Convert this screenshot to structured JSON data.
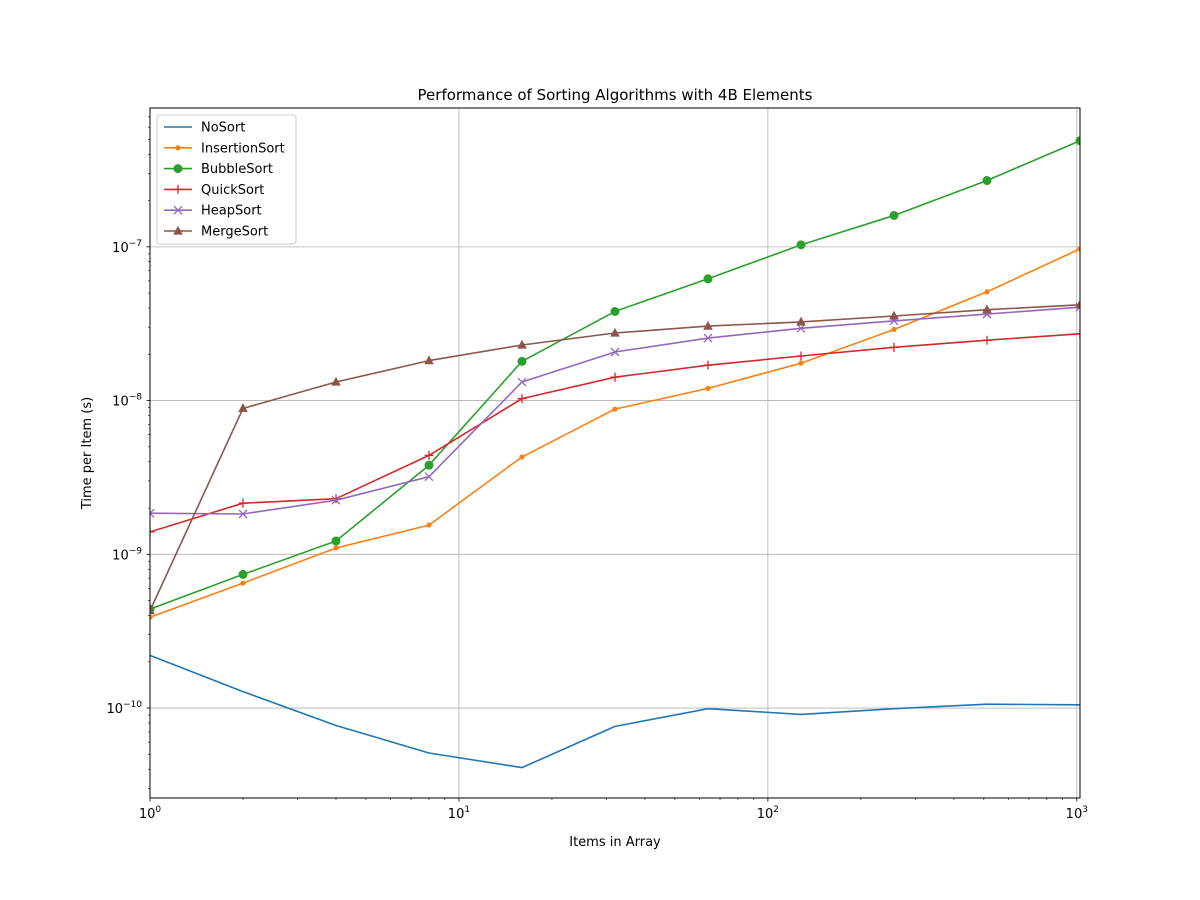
{
  "chart_data": {
    "type": "line",
    "title": "Performance of Sorting Algorithms with 4B Elements",
    "xlabel": "Items in Array",
    "ylabel": "Time per Item (s)",
    "xscale": "log",
    "yscale": "log",
    "xlim": [
      1,
      1024
    ],
    "ylim": [
      2.6e-11,
      8e-07
    ],
    "grid": "major",
    "legend_position": "upper-left",
    "x_ticks": [
      {
        "value": 1,
        "base": "10",
        "exp": "0"
      },
      {
        "value": 10,
        "base": "10",
        "exp": "1"
      },
      {
        "value": 100,
        "base": "10",
        "exp": "2"
      },
      {
        "value": 1000,
        "base": "10",
        "exp": "3"
      }
    ],
    "y_ticks": [
      {
        "value": 1e-10,
        "base": "10",
        "exp": "−10"
      },
      {
        "value": 1e-09,
        "base": "10",
        "exp": "−9"
      },
      {
        "value": 1e-08,
        "base": "10",
        "exp": "−8"
      },
      {
        "value": 1e-07,
        "base": "10",
        "exp": "−7"
      }
    ],
    "x": [
      1,
      2,
      4,
      8,
      16,
      32,
      64,
      128,
      256,
      512,
      1024
    ],
    "series": [
      {
        "name": "NoSort",
        "color": "#1f77b4",
        "marker": "none",
        "values": [
          2.2e-10,
          1.28e-10,
          7.7e-11,
          5.1e-11,
          4.1e-11,
          7.6e-11,
          9.9e-11,
          9.1e-11,
          9.9e-11,
          1.06e-10,
          1.05e-10
        ]
      },
      {
        "name": "InsertionSort",
        "color": "#ff7f0e",
        "marker": "point",
        "values": [
          3.9e-10,
          6.5e-10,
          1.1e-09,
          1.55e-09,
          4.3e-09,
          8.8e-09,
          1.2e-08,
          1.75e-08,
          2.9e-08,
          5.1e-08,
          9.7e-08
        ]
      },
      {
        "name": "BubbleSort",
        "color": "#2ca02c",
        "marker": "circle",
        "values": [
          4.4e-10,
          7.4e-10,
          1.22e-09,
          3.8e-09,
          1.8e-08,
          3.8e-08,
          6.2e-08,
          1.03e-07,
          1.6e-07,
          2.7e-07,
          4.9e-07
        ]
      },
      {
        "name": "QuickSort",
        "color": "#d62728",
        "marker": "plus",
        "values": [
          1.4e-09,
          2.15e-09,
          2.3e-09,
          4.4e-09,
          1.03e-08,
          1.42e-08,
          1.7e-08,
          1.95e-08,
          2.22e-08,
          2.47e-08,
          2.72e-08
        ]
      },
      {
        "name": "HeapSort",
        "color": "#9467bd",
        "marker": "x",
        "values": [
          1.85e-09,
          1.83e-09,
          2.25e-09,
          3.2e-09,
          1.32e-08,
          2.07e-08,
          2.55e-08,
          2.95e-08,
          3.3e-08,
          3.65e-08,
          4.05e-08
        ]
      },
      {
        "name": "MergeSort",
        "color": "#8c564b",
        "marker": "triangle",
        "values": [
          4.3e-10,
          8.9e-09,
          1.32e-08,
          1.82e-08,
          2.3e-08,
          2.75e-08,
          3.05e-08,
          3.25e-08,
          3.55e-08,
          3.9e-08,
          4.2e-08
        ]
      }
    ]
  }
}
